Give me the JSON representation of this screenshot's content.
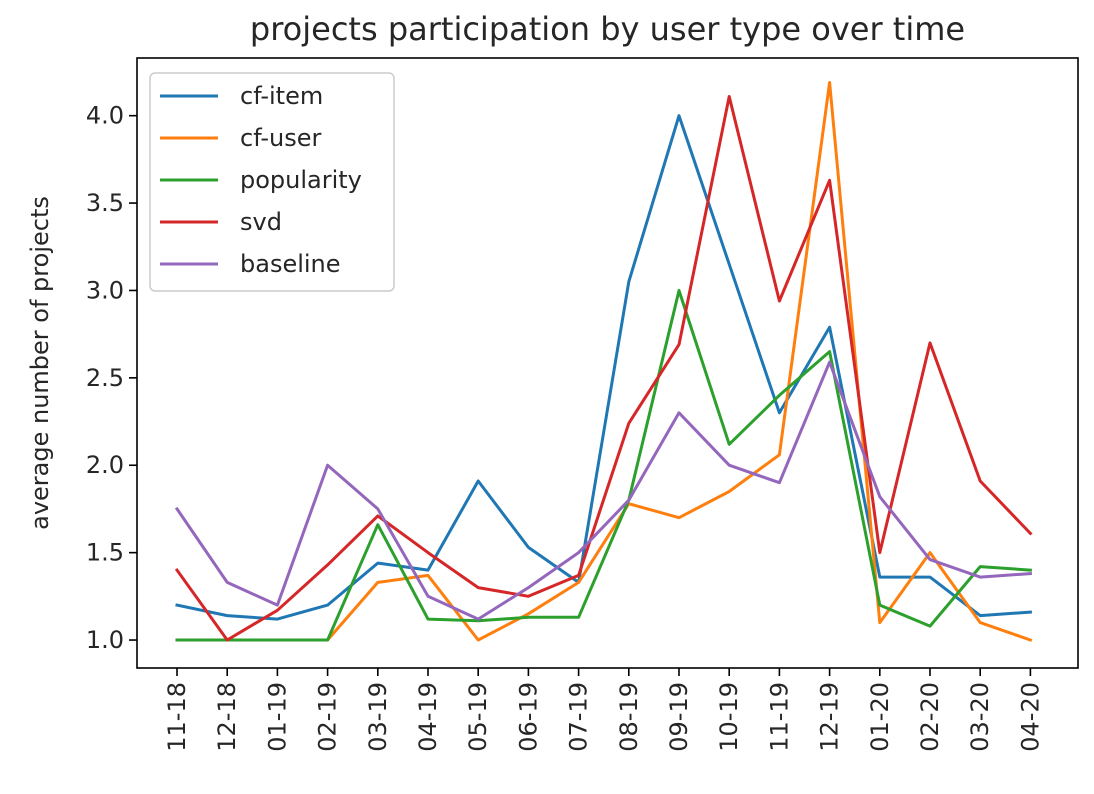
{
  "chart_data": {
    "type": "line",
    "title": "projects participation by user type over time",
    "xlabel": "",
    "ylabel": "average number of projects",
    "categories": [
      "11-18",
      "12-18",
      "01-19",
      "02-19",
      "03-19",
      "04-19",
      "05-19",
      "06-19",
      "07-19",
      "08-19",
      "09-19",
      "10-19",
      "11-19",
      "12-19",
      "01-20",
      "02-20",
      "03-20",
      "04-20"
    ],
    "ylim": [
      0.84,
      4.33
    ],
    "yticks": [
      "1.0",
      "1.5",
      "2.0",
      "2.5",
      "3.0",
      "3.5",
      "4.0"
    ],
    "grid": false,
    "legend_position": "top-left",
    "series": [
      {
        "name": "cf-item",
        "color": "#1f77b4",
        "values": [
          1.2,
          1.14,
          1.12,
          1.2,
          1.44,
          1.4,
          1.91,
          1.53,
          1.33,
          3.05,
          4.0,
          3.15,
          2.3,
          2.79,
          1.36,
          1.36,
          1.14,
          1.16
        ]
      },
      {
        "name": "cf-user",
        "color": "#ff7f0e",
        "values": [
          1.0,
          1.0,
          1.0,
          1.0,
          1.33,
          1.37,
          1.0,
          1.15,
          1.33,
          1.78,
          1.7,
          1.85,
          2.06,
          4.19,
          1.1,
          1.5,
          1.1,
          1.0
        ]
      },
      {
        "name": "popularity",
        "color": "#2ca02c",
        "values": [
          1.0,
          1.0,
          1.0,
          1.0,
          1.66,
          1.12,
          1.11,
          1.13,
          1.13,
          1.8,
          3.0,
          2.12,
          2.4,
          2.65,
          1.2,
          1.08,
          1.42,
          1.4
        ]
      },
      {
        "name": "svd",
        "color": "#d62728",
        "values": [
          1.4,
          1.0,
          1.17,
          1.43,
          1.71,
          1.5,
          1.3,
          1.25,
          1.37,
          2.24,
          2.69,
          4.11,
          2.94,
          3.63,
          1.5,
          2.7,
          1.91,
          1.61
        ]
      },
      {
        "name": "baseline",
        "color": "#9467bd",
        "values": [
          1.75,
          1.33,
          1.2,
          2.0,
          1.75,
          1.25,
          1.12,
          1.3,
          1.5,
          1.8,
          2.3,
          2.0,
          1.9,
          2.59,
          1.82,
          1.46,
          1.36,
          1.38
        ]
      }
    ]
  }
}
